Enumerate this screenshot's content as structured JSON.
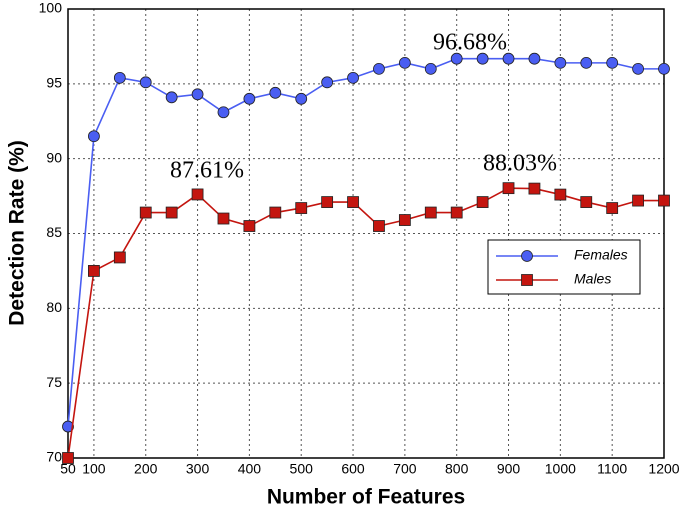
{
  "chart_data": {
    "type": "line",
    "x_label": "Number of Features",
    "y_label": "Detection Rate (%)",
    "x": [
      50,
      100,
      150,
      200,
      250,
      300,
      350,
      400,
      450,
      500,
      550,
      600,
      650,
      700,
      750,
      800,
      850,
      900,
      950,
      1000,
      1050,
      1100,
      1150,
      1200
    ],
    "series": [
      {
        "name": "Females",
        "color": "#4a5ef2",
        "marker": "circle",
        "values": [
          72.1,
          91.5,
          95.4,
          95.1,
          94.1,
          94.3,
          93.1,
          94.0,
          94.4,
          94.0,
          95.1,
          95.4,
          96.0,
          96.4,
          96.0,
          96.68,
          96.68,
          96.68,
          96.68,
          96.4,
          96.4,
          96.4,
          96.0,
          96.0
        ]
      },
      {
        "name": "Males",
        "color": "#c4150f",
        "marker": "square",
        "values": [
          70.0,
          82.5,
          83.4,
          86.4,
          86.4,
          87.61,
          86.0,
          85.5,
          86.4,
          86.7,
          87.1,
          87.1,
          85.5,
          85.9,
          86.4,
          86.4,
          87.1,
          88.03,
          88.0,
          87.6,
          87.1,
          86.7,
          87.2,
          87.2
        ]
      }
    ],
    "annotations": [
      "96.68%",
      "87.61%",
      "88.03%"
    ],
    "xlim": [
      50,
      1200
    ],
    "xticks": [
      50,
      100,
      200,
      300,
      400,
      500,
      600,
      700,
      800,
      900,
      1000,
      1100,
      1200
    ],
    "ylim": [
      70,
      100
    ],
    "yticks": [
      70,
      75,
      80,
      85,
      90,
      95,
      100
    ],
    "grid": true,
    "legend": "right"
  }
}
